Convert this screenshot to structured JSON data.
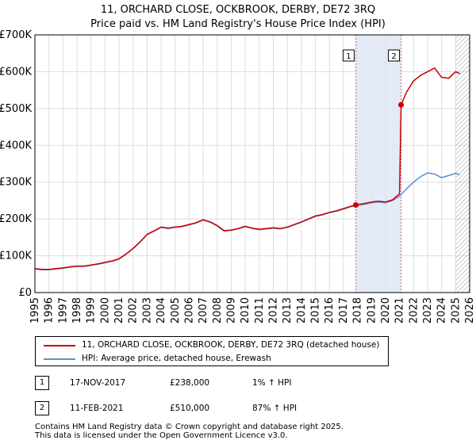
{
  "chart_data": {
    "type": "line",
    "title": "11, ORCHARD CLOSE, OCKBROOK, DERBY, DE72 3RQ",
    "subtitle": "Price paid vs. HM Land Registry's House Price Index (HPI)",
    "xlim": [
      1995,
      2026
    ],
    "ylim": [
      0,
      700000
    ],
    "x_ticks": [
      1995,
      1996,
      1997,
      1998,
      1999,
      2000,
      2001,
      2002,
      2003,
      2004,
      2005,
      2006,
      2007,
      2008,
      2009,
      2010,
      2011,
      2012,
      2013,
      2014,
      2015,
      2016,
      2017,
      2018,
      2019,
      2020,
      2021,
      2022,
      2023,
      2024,
      2025,
      2026
    ],
    "y_ticks": [
      {
        "value": 0,
        "label": "£0"
      },
      {
        "value": 100000,
        "label": "£100K"
      },
      {
        "value": 200000,
        "label": "£200K"
      },
      {
        "value": 300000,
        "label": "£300K"
      },
      {
        "value": 400000,
        "label": "£400K"
      },
      {
        "value": 500000,
        "label": "£500K"
      },
      {
        "value": 600000,
        "label": "£600K"
      },
      {
        "value": 700000,
        "label": "£700K"
      }
    ],
    "series": [
      {
        "name": "11, ORCHARD CLOSE, OCKBROOK, DERBY, DE72 3RQ (detached house)",
        "color": "#cc0000",
        "x": [
          1995.0,
          1995.5,
          1996.0,
          1996.5,
          1997.0,
          1997.5,
          1998.0,
          1998.5,
          1999.0,
          1999.5,
          2000.0,
          2000.5,
          2001.0,
          2001.5,
          2002.0,
          2002.5,
          2003.0,
          2003.5,
          2004.0,
          2004.5,
          2005.0,
          2005.5,
          2006.0,
          2006.5,
          2007.0,
          2007.5,
          2008.0,
          2008.5,
          2009.0,
          2009.5,
          2010.0,
          2010.5,
          2011.0,
          2011.5,
          2012.0,
          2012.5,
          2013.0,
          2013.5,
          2014.0,
          2014.5,
          2015.0,
          2015.5,
          2016.0,
          2016.5,
          2017.0,
          2017.5,
          2017.88,
          2018.5,
          2019.0,
          2019.5,
          2020.0,
          2020.5,
          2021.0,
          2021.11,
          2021.5,
          2022.0,
          2022.5,
          2023.0,
          2023.5,
          2024.0,
          2024.5,
          2025.0,
          2025.3
        ],
        "y": [
          65000,
          63000,
          63000,
          65000,
          67000,
          70000,
          72000,
          72000,
          75000,
          78000,
          82000,
          86000,
          92000,
          105000,
          120000,
          138000,
          158000,
          168000,
          178000,
          175000,
          178000,
          180000,
          185000,
          190000,
          198000,
          192000,
          182000,
          168000,
          170000,
          174000,
          180000,
          175000,
          172000,
          174000,
          176000,
          174000,
          178000,
          185000,
          192000,
          200000,
          208000,
          212000,
          218000,
          222000,
          228000,
          234000,
          238000,
          242000,
          246000,
          248000,
          246000,
          252000,
          268000,
          510000,
          545000,
          575000,
          590000,
          600000,
          610000,
          585000,
          582000,
          600000,
          595000
        ]
      },
      {
        "name": "HPI: Average price, detached house, Erewash",
        "color": "#5b8fcf",
        "x": [
          1995.0,
          1995.5,
          1996.0,
          1996.5,
          1997.0,
          1997.5,
          1998.0,
          1998.5,
          1999.0,
          1999.5,
          2000.0,
          2000.5,
          2001.0,
          2001.5,
          2002.0,
          2002.5,
          2003.0,
          2003.5,
          2004.0,
          2004.5,
          2005.0,
          2005.5,
          2006.0,
          2006.5,
          2007.0,
          2007.5,
          2008.0,
          2008.5,
          2009.0,
          2009.5,
          2010.0,
          2010.5,
          2011.0,
          2011.5,
          2012.0,
          2012.5,
          2013.0,
          2013.5,
          2014.0,
          2014.5,
          2015.0,
          2015.5,
          2016.0,
          2016.5,
          2017.0,
          2017.5,
          2017.88,
          2018.5,
          2019.0,
          2019.5,
          2020.0,
          2020.5,
          2021.0,
          2021.5,
          2022.0,
          2022.5,
          2023.0,
          2023.5,
          2024.0,
          2024.5,
          2025.0,
          2025.3
        ],
        "y": [
          64000,
          62000,
          62000,
          64000,
          66000,
          69000,
          71000,
          71000,
          74000,
          77000,
          81000,
          85000,
          91000,
          104000,
          119000,
          137000,
          157000,
          167000,
          177000,
          174000,
          177000,
          179000,
          184000,
          189000,
          197000,
          191000,
          181000,
          167000,
          169000,
          173000,
          179000,
          174000,
          171000,
          173000,
          175000,
          173000,
          177000,
          184000,
          191000,
          199000,
          207000,
          211000,
          217000,
          221000,
          227000,
          233000,
          236000,
          240000,
          244000,
          246000,
          244000,
          250000,
          262000,
          282000,
          300000,
          315000,
          325000,
          322000,
          312000,
          318000,
          324000,
          320000
        ]
      }
    ],
    "sales": [
      {
        "label": "1",
        "x": 2017.88,
        "y": 238000
      },
      {
        "label": "2",
        "x": 2021.11,
        "y": 510000
      }
    ],
    "shaded_span": [
      2017.88,
      2021.11
    ],
    "hatched_from": 2025.0
  },
  "legend": {
    "items": [
      {
        "label": "11, ORCHARD CLOSE, OCKBROOK, DERBY, DE72 3RQ (detached house)",
        "color": "#cc0000"
      },
      {
        "label": "HPI: Average price, detached house, Erewash",
        "color": "#5b8fcf"
      }
    ]
  },
  "transactions": [
    {
      "badge": "1",
      "date": "17-NOV-2017",
      "price": "£238,000",
      "hpi": "1% ↑ HPI"
    },
    {
      "badge": "2",
      "date": "11-FEB-2021",
      "price": "£510,000",
      "hpi": "87% ↑ HPI"
    }
  ],
  "footer": {
    "line1": "Contains HM Land Registry data © Crown copyright and database right 2025.",
    "line2": "This data is licensed under the Open Government Licence v3.0."
  }
}
